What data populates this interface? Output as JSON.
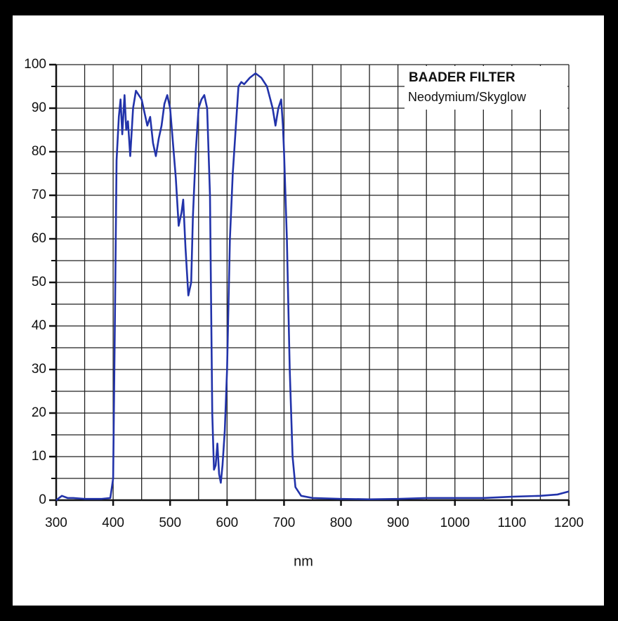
{
  "chart_data": {
    "type": "line",
    "title": "BAADER FILTER",
    "subtitle": "Neodymium/Skyglow",
    "x_label": "nm",
    "color": "#2233aa",
    "x": [
      300,
      310,
      320,
      330,
      350,
      380,
      395,
      400,
      403,
      406,
      410,
      413,
      416,
      420,
      423,
      426,
      430,
      435,
      440,
      450,
      460,
      465,
      470,
      475,
      480,
      485,
      490,
      495,
      500,
      505,
      510,
      515,
      520,
      523,
      527,
      532,
      537,
      540,
      545,
      550,
      555,
      560,
      565,
      570,
      574,
      577,
      580,
      583,
      586,
      589,
      592,
      596,
      600,
      605,
      610,
      615,
      620,
      625,
      630,
      640,
      650,
      660,
      670,
      680,
      685,
      690,
      695,
      698,
      700,
      705,
      710,
      715,
      720,
      730,
      750,
      800,
      850,
      900,
      950,
      1000,
      1050,
      1100,
      1150,
      1180,
      1200
    ],
    "values": [
      0,
      1,
      0.5,
      0.5,
      0.3,
      0.3,
      0.5,
      5,
      40,
      78,
      88,
      92,
      84,
      93,
      85,
      87,
      79,
      90,
      94,
      92,
      86,
      88,
      82,
      79,
      83,
      86,
      91,
      93,
      90,
      82,
      74,
      63,
      66,
      69,
      58,
      47,
      50,
      65,
      80,
      90,
      92,
      93,
      90,
      70,
      20,
      7,
      8,
      13,
      6,
      4,
      8,
      16,
      30,
      60,
      75,
      85,
      95,
      96,
      95.5,
      97,
      98,
      97,
      95,
      90,
      86,
      90,
      92,
      86,
      80,
      60,
      30,
      10,
      3,
      1,
      0.5,
      0.3,
      0.2,
      0.3,
      0.5,
      0.5,
      0.5,
      0.8,
      1,
      1.3,
      2
    ],
    "xlim": [
      300,
      1200
    ],
    "ylim": [
      0,
      100
    ],
    "xticks": [
      300,
      400,
      500,
      600,
      700,
      800,
      900,
      1000,
      1100,
      1200
    ],
    "yticks": [
      0,
      10,
      20,
      30,
      40,
      50,
      60,
      70,
      80,
      90,
      100
    ],
    "xgrid": [
      350,
      450,
      550,
      650,
      750,
      850,
      950,
      1050,
      1150
    ],
    "ygrid": [
      5,
      15,
      25,
      35,
      45,
      55,
      65,
      75,
      85,
      95
    ],
    "grid": true
  }
}
